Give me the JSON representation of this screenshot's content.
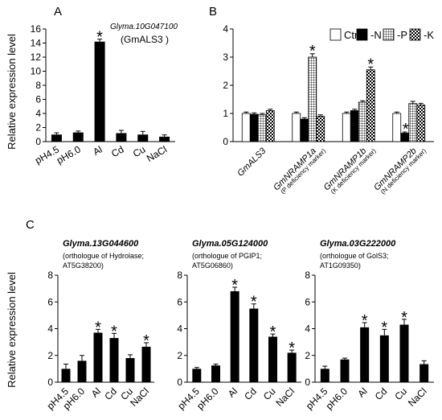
{
  "figure_text": {
    "ylabel": "Relative expression level",
    "legend": [
      "Ctrl",
      "-N",
      "-P",
      "-K"
    ]
  },
  "chart_data": [
    {
      "panel": "A",
      "type": "bar",
      "title": "Glyma.10G047100",
      "title2": "(GmALS3 )",
      "ylabel": "Relative expression level",
      "categories": [
        "pH4.5",
        "pH6.0",
        "Al",
        "Cd",
        "Cu",
        "NaCl"
      ],
      "values": [
        1.0,
        1.3,
        14.2,
        1.2,
        1.0,
        0.7
      ],
      "errors": [
        0.25,
        0.2,
        0.35,
        0.4,
        0.45,
        0.25
      ],
      "sig": [
        false,
        false,
        true,
        false,
        false,
        false
      ],
      "ylim": [
        0,
        16
      ],
      "yticks": [
        0,
        2,
        4,
        6,
        8,
        10,
        12,
        14,
        16
      ],
      "color": "#000000"
    },
    {
      "panel": "B",
      "type": "bar",
      "categories": [
        "GmALS3",
        "GmNRAMP1a",
        "GmNRAMP1b",
        "GmNRAMP2b"
      ],
      "category_notes": [
        "",
        "(P deficiency marker)",
        "(K deficiency marker)",
        "(N deficiency marker)"
      ],
      "series": [
        {
          "name": "Ctrl",
          "values": [
            1.0,
            1.0,
            1.0,
            1.0
          ],
          "errors": [
            0.05,
            0.05,
            0.05,
            0.05
          ],
          "sig": [
            false,
            false,
            false,
            false
          ]
        },
        {
          "name": "-N",
          "values": [
            0.97,
            0.8,
            1.1,
            0.3
          ],
          "errors": [
            0.05,
            0.05,
            0.05,
            0.04
          ],
          "sig": [
            false,
            false,
            false,
            true
          ]
        },
        {
          "name": "-P",
          "values": [
            0.95,
            3.0,
            1.4,
            1.35
          ],
          "errors": [
            0.05,
            0.12,
            0.05,
            0.08
          ],
          "sig": [
            false,
            true,
            false,
            false
          ]
        },
        {
          "name": "-K",
          "values": [
            1.1,
            0.9,
            2.55,
            1.3
          ],
          "errors": [
            0.05,
            0.05,
            0.1,
            0.06
          ],
          "sig": [
            false,
            false,
            true,
            false
          ]
        }
      ],
      "ylim": [
        0,
        4
      ],
      "yticks": [
        0,
        1,
        2,
        3,
        4
      ],
      "legend_position": "top-right"
    },
    {
      "panel": "C1",
      "type": "bar",
      "title": "Glyma.13G044600",
      "subtitle": [
        "(orthologue of Hydrolase;",
        "AT5G38200)"
      ],
      "categories": [
        "pH4.5",
        "pH6.0",
        "Al",
        "Cd",
        "Cu",
        "NaCl"
      ],
      "values": [
        1.0,
        1.6,
        3.7,
        3.3,
        1.8,
        2.65
      ],
      "errors": [
        0.35,
        0.4,
        0.25,
        0.35,
        0.25,
        0.3
      ],
      "sig": [
        false,
        false,
        true,
        true,
        false,
        true
      ],
      "ylim": [
        0,
        8
      ],
      "yticks": [
        0,
        2,
        4,
        6,
        8
      ],
      "color": "#000000"
    },
    {
      "panel": "C2",
      "type": "bar",
      "title": "Glyma.05G124000",
      "subtitle": [
        "(orthologue of PGIP1;",
        "AT5G06860)"
      ],
      "categories": [
        "pH4.5",
        "pH6.0",
        "Al",
        "Cd",
        "Cu",
        "NaCl"
      ],
      "values": [
        1.0,
        1.25,
        6.8,
        5.5,
        3.4,
        2.2
      ],
      "errors": [
        0.1,
        0.1,
        0.3,
        0.35,
        0.2,
        0.2
      ],
      "sig": [
        false,
        false,
        true,
        true,
        true,
        true
      ],
      "ylim": [
        0,
        8
      ],
      "yticks": [
        0,
        2,
        4,
        6,
        8
      ],
      "color": "#000000"
    },
    {
      "panel": "C3",
      "type": "bar",
      "title": "Glyma.03G222000",
      "subtitle": [
        "(orthologue of GolS3;",
        "AT1G09350)"
      ],
      "categories": [
        "pH4.5",
        "pH6.0",
        "Al",
        "Cd",
        "Cu",
        "NaCl"
      ],
      "values": [
        1.0,
        1.7,
        4.1,
        3.5,
        4.3,
        1.35
      ],
      "errors": [
        0.2,
        0.1,
        0.35,
        0.45,
        0.4,
        0.25
      ],
      "sig": [
        false,
        false,
        true,
        true,
        true,
        false
      ],
      "ylim": [
        0,
        8
      ],
      "yticks": [
        0,
        2,
        4,
        6,
        8
      ],
      "color": "#000000"
    }
  ]
}
